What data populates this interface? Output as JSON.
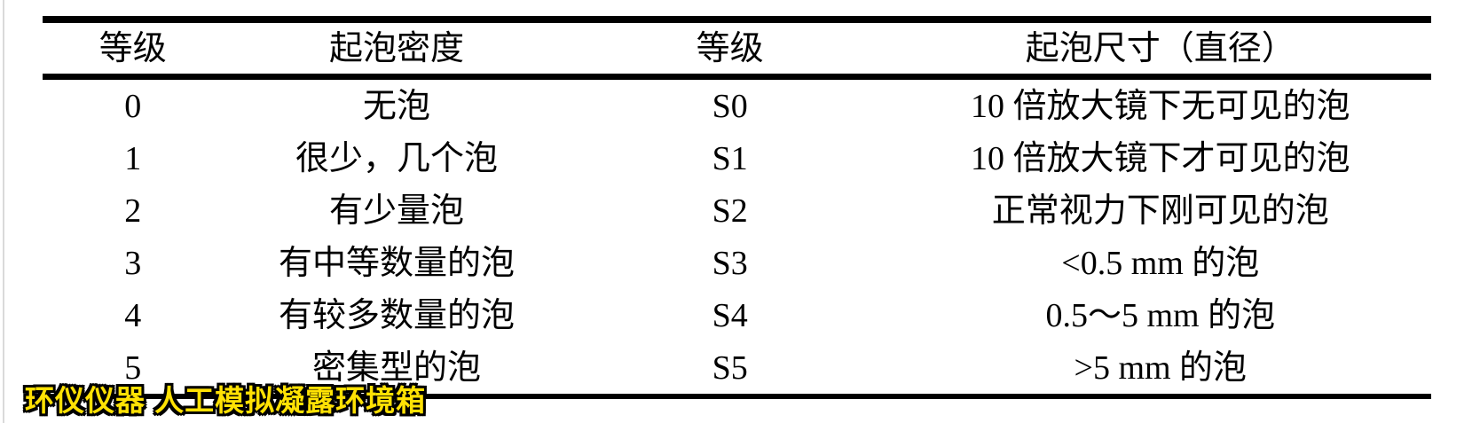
{
  "table": {
    "headers": {
      "grade": "等级",
      "density": "起泡密度",
      "s_grade": "等级",
      "size": "起泡尺寸（直径）"
    },
    "rows": [
      {
        "grade": "0",
        "density": "无泡",
        "s_grade": "S0",
        "size": "10 倍放大镜下无可见的泡"
      },
      {
        "grade": "1",
        "density": "很少，几个泡",
        "s_grade": "S1",
        "size": "10 倍放大镜下才可见的泡"
      },
      {
        "grade": "2",
        "density": "有少量泡",
        "s_grade": "S2",
        "size": "正常视力下刚可见的泡"
      },
      {
        "grade": "3",
        "density": "有中等数量的泡",
        "s_grade": "S3",
        "size": "<0.5 mm 的泡"
      },
      {
        "grade": "4",
        "density": "有较多数量的泡",
        "s_grade": "S4",
        "size": "0.5～5 mm 的泡"
      },
      {
        "grade": "5",
        "density": "密集型的泡",
        "s_grade": "S5",
        "size": ">5 mm 的泡"
      }
    ]
  },
  "watermark": {
    "text": "环仪仪器 人工模拟凝露环境箱",
    "text_color": "#FFE104",
    "outline_color": "#000000"
  }
}
